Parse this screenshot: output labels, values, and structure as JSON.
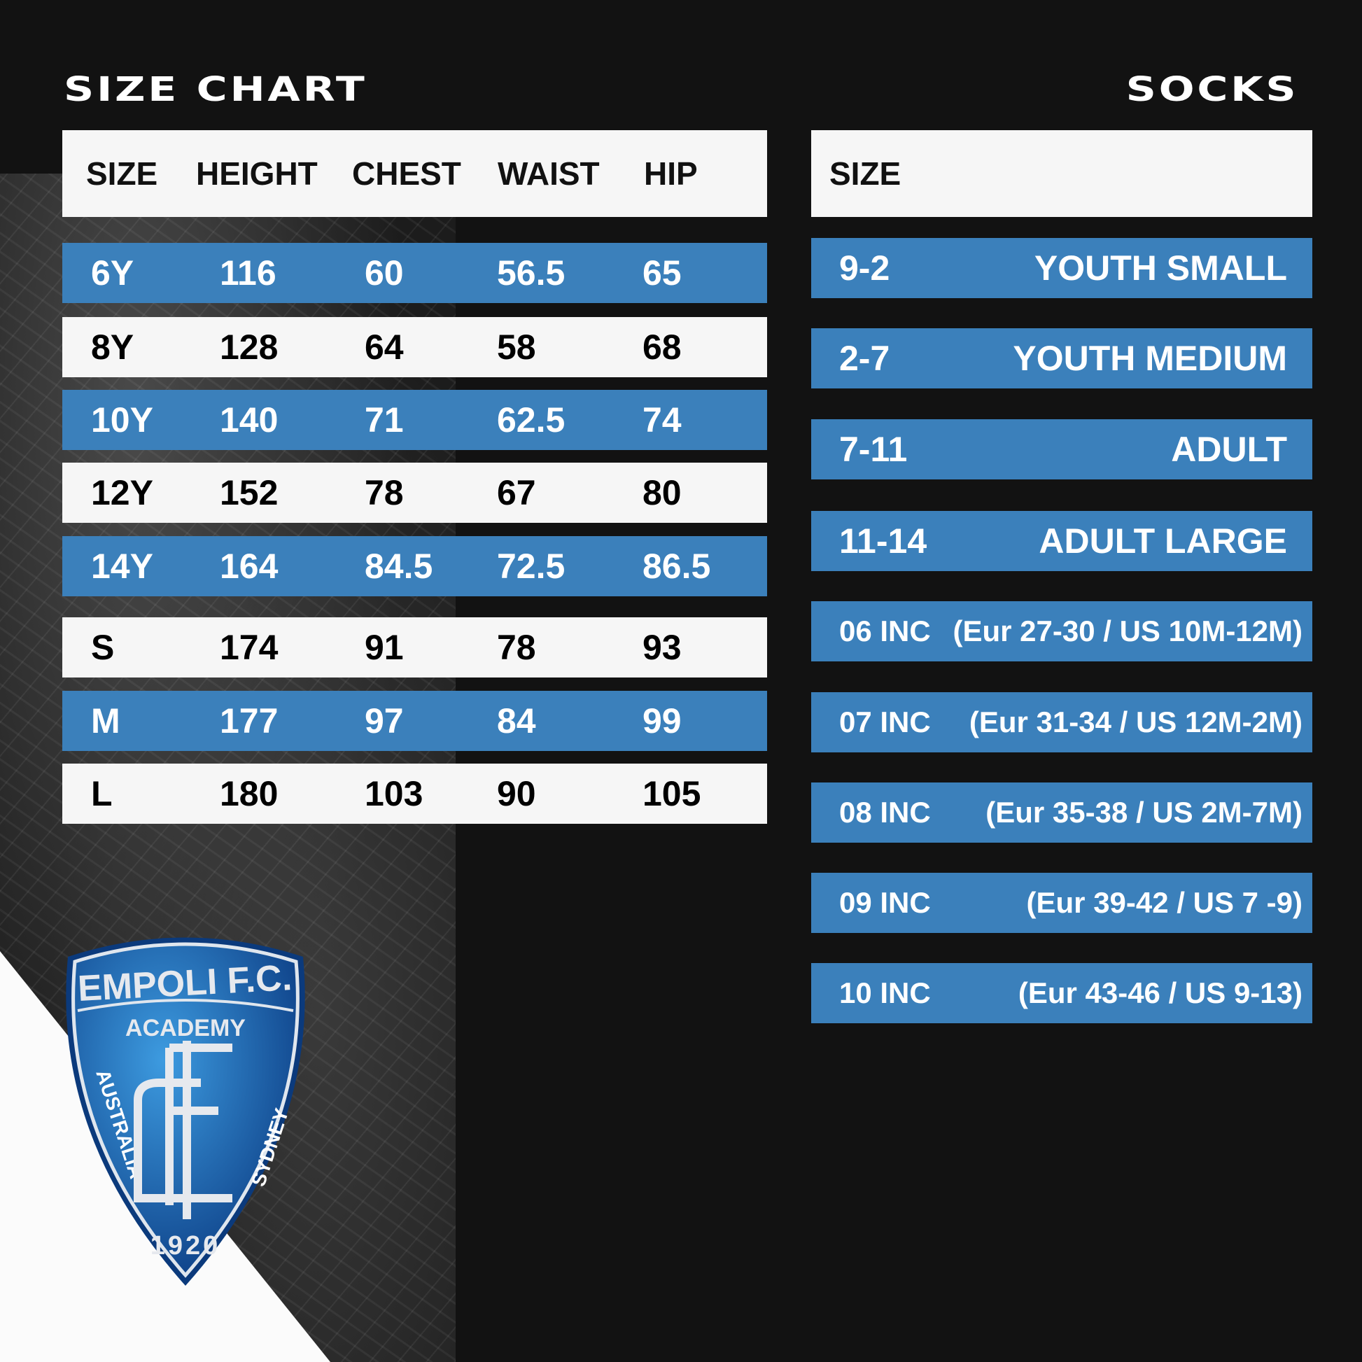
{
  "title_left": "SIZE CHART",
  "title_right": "SOCKS",
  "colors": {
    "blue": "#3b80bb",
    "background": "#121212",
    "row_white": "#f6f6f6"
  },
  "size_chart": {
    "headers": [
      "SIZE",
      "HEIGHT",
      "CHEST",
      "WAIST",
      "HIP"
    ],
    "rows": [
      [
        "6Y",
        "116",
        "60",
        "56.5",
        "65"
      ],
      [
        "8Y",
        "128",
        "64",
        "58",
        "68"
      ],
      [
        "10Y",
        "140",
        "71",
        "62.5",
        "74"
      ],
      [
        "12Y",
        "152",
        "78",
        "67",
        "80"
      ],
      [
        "14Y",
        "164",
        "84.5",
        "72.5",
        "86.5"
      ],
      [
        "S",
        "174",
        "91",
        "78",
        "93"
      ],
      [
        "M",
        "177",
        "97",
        "84",
        "99"
      ],
      [
        "L",
        "180",
        "103",
        "90",
        "105"
      ]
    ]
  },
  "socks": {
    "header": "SIZE",
    "rows": [
      [
        "9-2",
        "YOUTH SMALL"
      ],
      [
        "2-7",
        "YOUTH MEDIUM"
      ],
      [
        "7-11",
        "ADULT"
      ],
      [
        "11-14",
        "ADULT LARGE"
      ],
      [
        "06 INC",
        "(Eur 27-30 / US 10M-12M)"
      ],
      [
        "07 INC",
        "(Eur 31-34 / US 12M-2M)"
      ],
      [
        "08 INC",
        "(Eur 35-38 / US 2M-7M)"
      ],
      [
        "09 INC",
        "(Eur 39-42 / US 7 -9)"
      ],
      [
        "10 INC",
        "(Eur 43-46 / US 9-13)"
      ]
    ]
  },
  "logo": {
    "name": "EMPOLI F.C.",
    "sub": "ACADEMY",
    "left": "AUSTRALIA",
    "right": "SYDNEY",
    "year": "1920"
  }
}
